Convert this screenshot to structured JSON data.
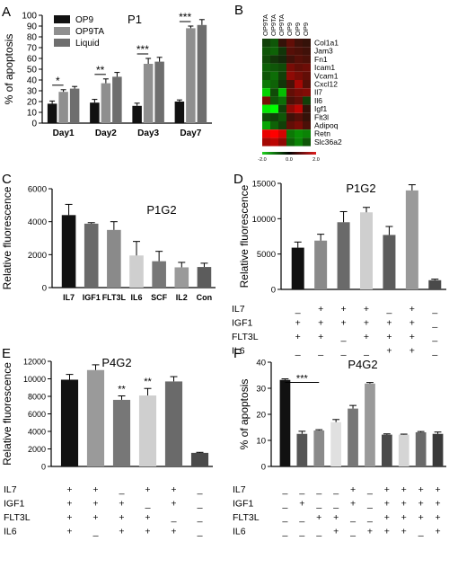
{
  "panels": {
    "A": "A",
    "B": "B",
    "C": "C",
    "D": "D",
    "E": "E",
    "F": "F"
  },
  "chart_data": [
    {
      "id": "A",
      "type": "bar",
      "title": "P1",
      "xlabel": "",
      "ylabel": "% of apoptosis",
      "ylim": [
        0,
        100
      ],
      "yticks": [
        0,
        10,
        20,
        30,
        40,
        50,
        60,
        70,
        80,
        90,
        100
      ],
      "categories": [
        "Day1",
        "Day2",
        "Day3",
        "Day7"
      ],
      "legend_position": "top-left",
      "series": [
        {
          "name": "OP9",
          "color": "#111111",
          "values": [
            18,
            19,
            16,
            20
          ],
          "errors": [
            2.5,
            3,
            2.5,
            1.5
          ]
        },
        {
          "name": "OP9TA",
          "color": "#8f8f8f",
          "values": [
            29,
            37,
            55,
            88
          ],
          "errors": [
            2,
            4,
            5,
            2
          ]
        },
        {
          "name": "Liquid",
          "color": "#6e6e6e",
          "values": [
            32,
            43,
            57,
            91
          ],
          "errors": [
            2,
            4,
            4,
            5
          ]
        }
      ],
      "significance": [
        {
          "category": "Day1",
          "label": "*"
        },
        {
          "category": "Day2",
          "label": "**"
        },
        {
          "category": "Day3",
          "label": "***"
        },
        {
          "category": "Day7",
          "label": "***"
        }
      ]
    },
    {
      "id": "B",
      "type": "heatmap",
      "columns": [
        "OP9TA",
        "OP9TA",
        "OP9TA",
        "OP9",
        "OP9",
        "OP9"
      ],
      "rows": [
        "Col1a1",
        "Jam3",
        "Fn1",
        "Icam1",
        "Vcam1",
        "Cxcl12",
        "Il7",
        "Il6",
        "Igf1",
        "Flt3l",
        "Adipoq",
        "Retn",
        "Slc36a2"
      ],
      "scale": {
        "min": -2.0,
        "mid": 0.0,
        "max": 2.0,
        "labels": [
          "-2.0",
          "0.0",
          "2.0"
        ]
      },
      "values": [
        [
          -0.3,
          -0.5,
          0.2,
          0.6,
          0.3,
          0.2
        ],
        [
          -0.5,
          -0.6,
          -0.2,
          0.5,
          0.4,
          0.3
        ],
        [
          -0.4,
          -0.2,
          -0.1,
          0.3,
          0.5,
          0.4
        ],
        [
          -0.6,
          -0.5,
          -0.4,
          0.8,
          0.6,
          0.7
        ],
        [
          -0.5,
          -0.7,
          -0.3,
          1.0,
          0.8,
          0.6
        ],
        [
          -0.8,
          -0.6,
          -0.2,
          0.4,
          1.2,
          0.5
        ],
        [
          -1.6,
          -0.4,
          -1.4,
          0.6,
          0.8,
          0.9
        ],
        [
          0.8,
          -0.5,
          -0.7,
          0.4,
          0.6,
          -0.3
        ],
        [
          -1.8,
          -2.0,
          -0.3,
          1.0,
          1.4,
          0.2
        ],
        [
          -0.4,
          -0.3,
          -0.5,
          0.3,
          0.5,
          0.2
        ],
        [
          -1.2,
          -0.6,
          -0.3,
          0.6,
          0.8,
          0.4
        ],
        [
          1.8,
          2.0,
          1.6,
          -0.8,
          -1.0,
          -0.9
        ],
        [
          1.2,
          1.4,
          1.0,
          -0.6,
          -0.9,
          -0.5
        ]
      ]
    },
    {
      "id": "C",
      "type": "bar",
      "title": "P1G2",
      "ylabel": "Relative fluorescence",
      "ylim": [
        0,
        6000
      ],
      "yticks": [
        0,
        2000,
        4000,
        6000
      ],
      "categories": [
        "IL7",
        "IGF1",
        "FLT3L",
        "IL6",
        "SCF",
        "IL2",
        "Con"
      ],
      "values": [
        4400,
        3880,
        3500,
        1950,
        1600,
        1230,
        1250
      ],
      "errors": [
        650,
        60,
        500,
        850,
        600,
        300,
        230
      ],
      "colors": [
        "#111111",
        "#6a6a6a",
        "#8a8a8a",
        "#cfcfcf",
        "#777777",
        "#9a9a9a",
        "#5c5c5c"
      ]
    },
    {
      "id": "D",
      "type": "bar",
      "title": "P1G2",
      "ylabel": "Relative fluorescence",
      "ylim": [
        0,
        15000
      ],
      "yticks": [
        0,
        5000,
        10000,
        15000
      ],
      "values": [
        5900,
        6900,
        9500,
        10900,
        7700,
        14000,
        1300
      ],
      "errors": [
        800,
        900,
        1500,
        700,
        1200,
        800,
        150
      ],
      "colors": [
        "#111111",
        "#8a8a8a",
        "#6a6a6a",
        "#cfcfcf",
        "#5c5c5c",
        "#9a9a9a",
        "#4a4a4a"
      ],
      "conditions": {
        "labels": [
          "IL7",
          "IGF1",
          "FLT3L",
          "IL6"
        ],
        "rows": [
          [
            "_",
            "+",
            "+",
            "+",
            "_",
            "+",
            "_"
          ],
          [
            "+",
            "+",
            "+",
            "+",
            "+",
            "+",
            "_"
          ],
          [
            "+",
            "+",
            "_",
            "+",
            "+",
            "+",
            "_"
          ],
          [
            "_",
            "_",
            "_",
            "_",
            "+",
            "+",
            "_"
          ]
        ]
      }
    },
    {
      "id": "E",
      "type": "bar",
      "title": "P4G2",
      "ylabel": "Relative fluorescence",
      "ylim": [
        0,
        12000
      ],
      "yticks": [
        0,
        2000,
        4000,
        6000,
        8000,
        10000,
        12000
      ],
      "values": [
        9900,
        11000,
        7600,
        8100,
        9700,
        1550
      ],
      "errors": [
        600,
        600,
        450,
        800,
        550,
        60
      ],
      "colors": [
        "#111111",
        "#9a9a9a",
        "#777777",
        "#cfcfcf",
        "#6a6a6a",
        "#4a4a4a"
      ],
      "significance": [
        {
          "index": 2,
          "label": "**"
        },
        {
          "index": 3,
          "label": "**"
        }
      ],
      "conditions": {
        "labels": [
          "IL7",
          "IGF1",
          "FLT3L",
          "IL6"
        ],
        "rows": [
          [
            "+",
            "+",
            "_",
            "+",
            "+",
            "_"
          ],
          [
            "+",
            "+",
            "+",
            "_",
            "+",
            "_"
          ],
          [
            "+",
            "+",
            "+",
            "+",
            "_",
            "_"
          ],
          [
            "+",
            "_",
            "+",
            "+",
            "+",
            "_"
          ]
        ]
      }
    },
    {
      "id": "F",
      "type": "bar",
      "title": "P4G2",
      "ylabel": "% of apoptosis",
      "ylim": [
        0,
        40
      ],
      "yticks": [
        0,
        10,
        20,
        30,
        40
      ],
      "values": [
        33.2,
        12.5,
        13.8,
        17.0,
        22.2,
        31.8,
        12.2,
        12.2,
        13.1,
        12.5
      ],
      "errors": [
        0.4,
        1.0,
        0.3,
        1.0,
        1.2,
        0.4,
        0.3,
        0.2,
        0.3,
        0.7
      ],
      "colors": [
        "#111111",
        "#555555",
        "#8a8a8a",
        "#e0e0e0",
        "#777777",
        "#9a9a9a",
        "#4a4a4a",
        "#d5d5d5",
        "#6a6a6a",
        "#3a3a3a"
      ],
      "significance": [
        {
          "from": 0,
          "to": 2,
          "label": "***"
        }
      ],
      "conditions": {
        "labels": [
          "IL7",
          "IGF1",
          "FLT3L",
          "IL6"
        ],
        "rows": [
          [
            "_",
            "_",
            "_",
            "_",
            "+",
            "_",
            "+",
            "+",
            "+",
            "+"
          ],
          [
            "_",
            "+",
            "_",
            "_",
            "+",
            "_",
            "+",
            "+",
            "+",
            "+"
          ],
          [
            "_",
            "_",
            "+",
            "+",
            "_",
            "_",
            "+",
            "+",
            "+",
            "+"
          ],
          [
            "_",
            "_",
            "_",
            "+",
            "_",
            "+",
            "+",
            "+",
            "_",
            "+"
          ]
        ]
      }
    }
  ]
}
